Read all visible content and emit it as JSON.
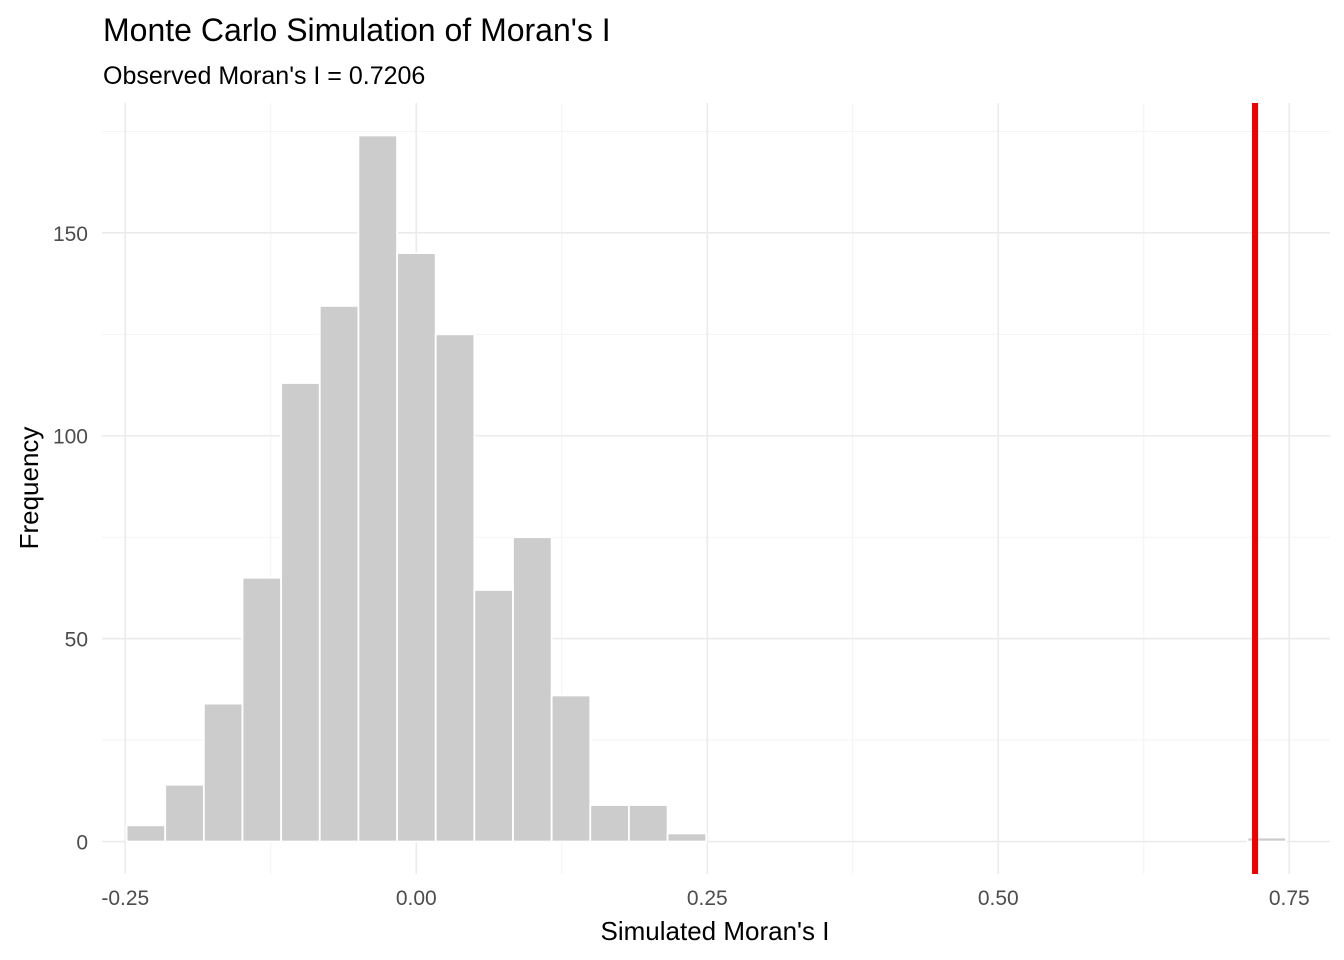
{
  "chart_data": {
    "type": "bar",
    "title": "Monte Carlo Simulation of Moran's I",
    "subtitle": "Observed Moran's I = 0.7206",
    "xlabel": "Simulated Moran's I",
    "ylabel": "Frequency",
    "xlim": [
      -0.27,
      0.785
    ],
    "ylim": [
      -8,
      182
    ],
    "x_ticks": [
      -0.25,
      0,
      0.25,
      0.5,
      0.75
    ],
    "x_tick_labels": [
      "-0.25",
      "0.00",
      "0.25",
      "0.50",
      "0.75"
    ],
    "y_ticks": [
      0,
      50,
      100,
      150
    ],
    "y_tick_labels": [
      "0",
      "50",
      "100",
      "150"
    ],
    "grid": true,
    "bin_width": 0.0332,
    "bins": [
      {
        "x": -0.2323,
        "count": 4
      },
      {
        "x": -0.1991,
        "count": 14
      },
      {
        "x": -0.1659,
        "count": 34
      },
      {
        "x": -0.1327,
        "count": 65
      },
      {
        "x": -0.0995,
        "count": 113
      },
      {
        "x": -0.0663,
        "count": 132
      },
      {
        "x": -0.0331,
        "count": 174
      },
      {
        "x": 0.0001,
        "count": 145
      },
      {
        "x": 0.0333,
        "count": 125
      },
      {
        "x": 0.0665,
        "count": 62
      },
      {
        "x": 0.0997,
        "count": 75
      },
      {
        "x": 0.1329,
        "count": 36
      },
      {
        "x": 0.1661,
        "count": 9
      },
      {
        "x": 0.1993,
        "count": 9
      },
      {
        "x": 0.2325,
        "count": 2
      },
      {
        "x": 0.7306,
        "count": 1
      }
    ],
    "observed_line": {
      "x": 0.7206,
      "color": "#ee0000"
    },
    "bar_color": "#cccccc"
  }
}
